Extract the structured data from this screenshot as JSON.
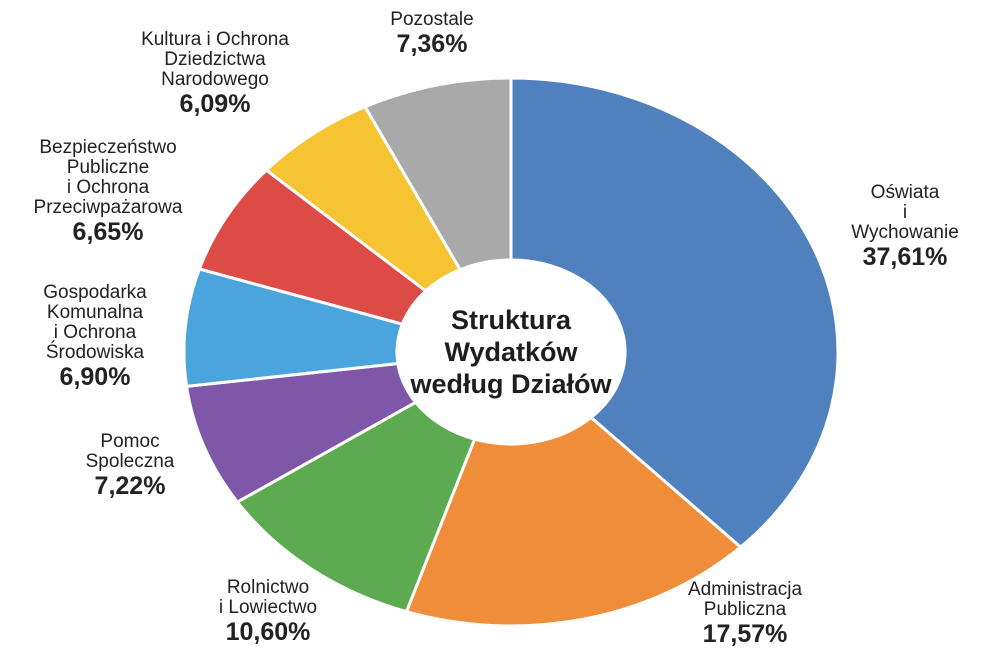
{
  "chart_data": {
    "type": "donut",
    "title": "Struktura\nWydatków\nwedług Działów",
    "categories": [
      "Oświata\ni Wychowanie",
      "Administracja\nPubliczna",
      "Rolnictwo\ni Lowiectwo",
      "Pomoc\nSpoleczna",
      "Gospodarka\nKomunalna\ni Ochrona\nŚrodowiska",
      "Bezpieczeństwo\nPubliczne\ni Ochrona\nPrzeciwpażarowa",
      "Kultura i Ochrona\nDziedzictwa\nNarodowego",
      "Pozostale"
    ],
    "values": [
      37.61,
      17.57,
      10.6,
      7.22,
      6.9,
      6.65,
      6.09,
      7.36
    ],
    "value_labels": [
      "37,61%",
      "17,57%",
      "10,60%",
      "7,22%",
      "6,90%",
      "6,65%",
      "6,09%",
      "7,36%"
    ],
    "colors": [
      "#5180bf",
      "#ef8d3b",
      "#5cab50",
      "#7f57a8",
      "#4ba5dd",
      "#dc4b45",
      "#f6c333",
      "#a9a9a9"
    ]
  }
}
